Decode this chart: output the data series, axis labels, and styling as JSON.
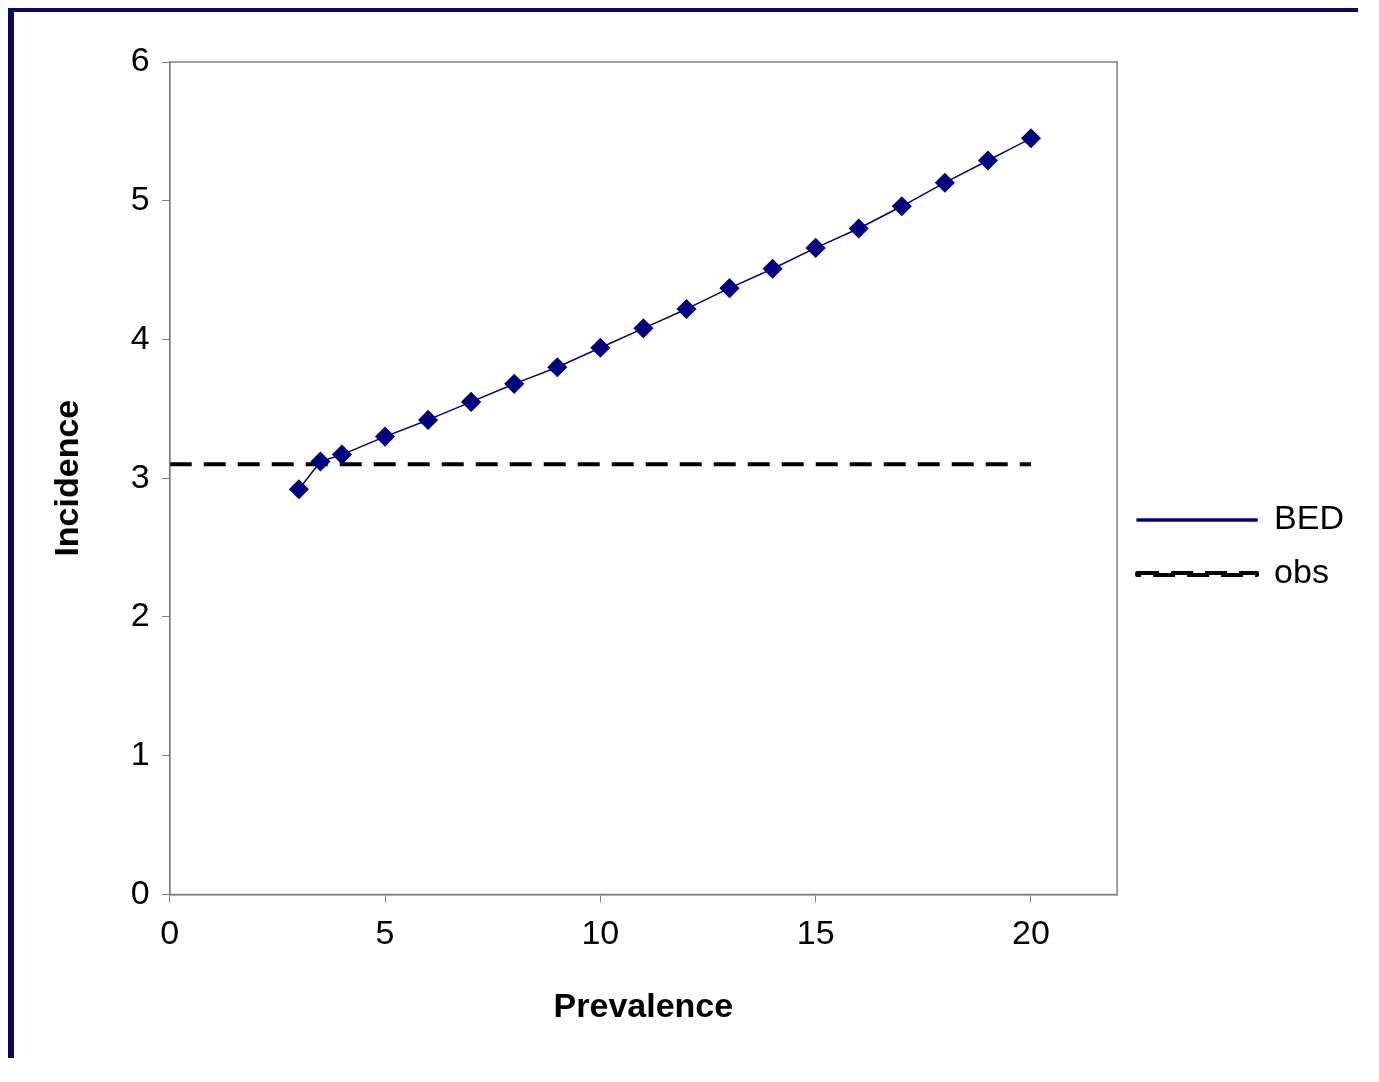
{
  "chart_data": {
    "type": "line",
    "xlabel": "Prevalence",
    "ylabel": "Incidence",
    "xlim": [
      0,
      22
    ],
    "xticks": [
      0,
      5,
      10,
      15,
      20
    ],
    "ylim": [
      0,
      6
    ],
    "yticks": [
      0,
      1,
      2,
      3,
      4,
      5,
      6
    ],
    "legend": "right",
    "series": [
      {
        "name": "BED",
        "color": "#000080",
        "marker": "diamond",
        "line_style": "solid",
        "x": [
          3,
          3.5,
          4,
          5,
          6,
          7,
          8,
          9,
          10,
          11,
          12,
          13,
          14,
          15,
          16,
          17,
          18,
          19,
          20
        ],
        "values": [
          2.92,
          3.12,
          3.17,
          3.3,
          3.42,
          3.55,
          3.68,
          3.8,
          3.94,
          4.08,
          4.22,
          4.37,
          4.51,
          4.66,
          4.8,
          4.96,
          5.13,
          5.29,
          5.45
        ]
      },
      {
        "name": "obs",
        "color": "#000000",
        "marker": "none",
        "line_style": "dashed",
        "x": [
          0,
          20
        ],
        "values": [
          3.1,
          3.1
        ]
      }
    ]
  }
}
